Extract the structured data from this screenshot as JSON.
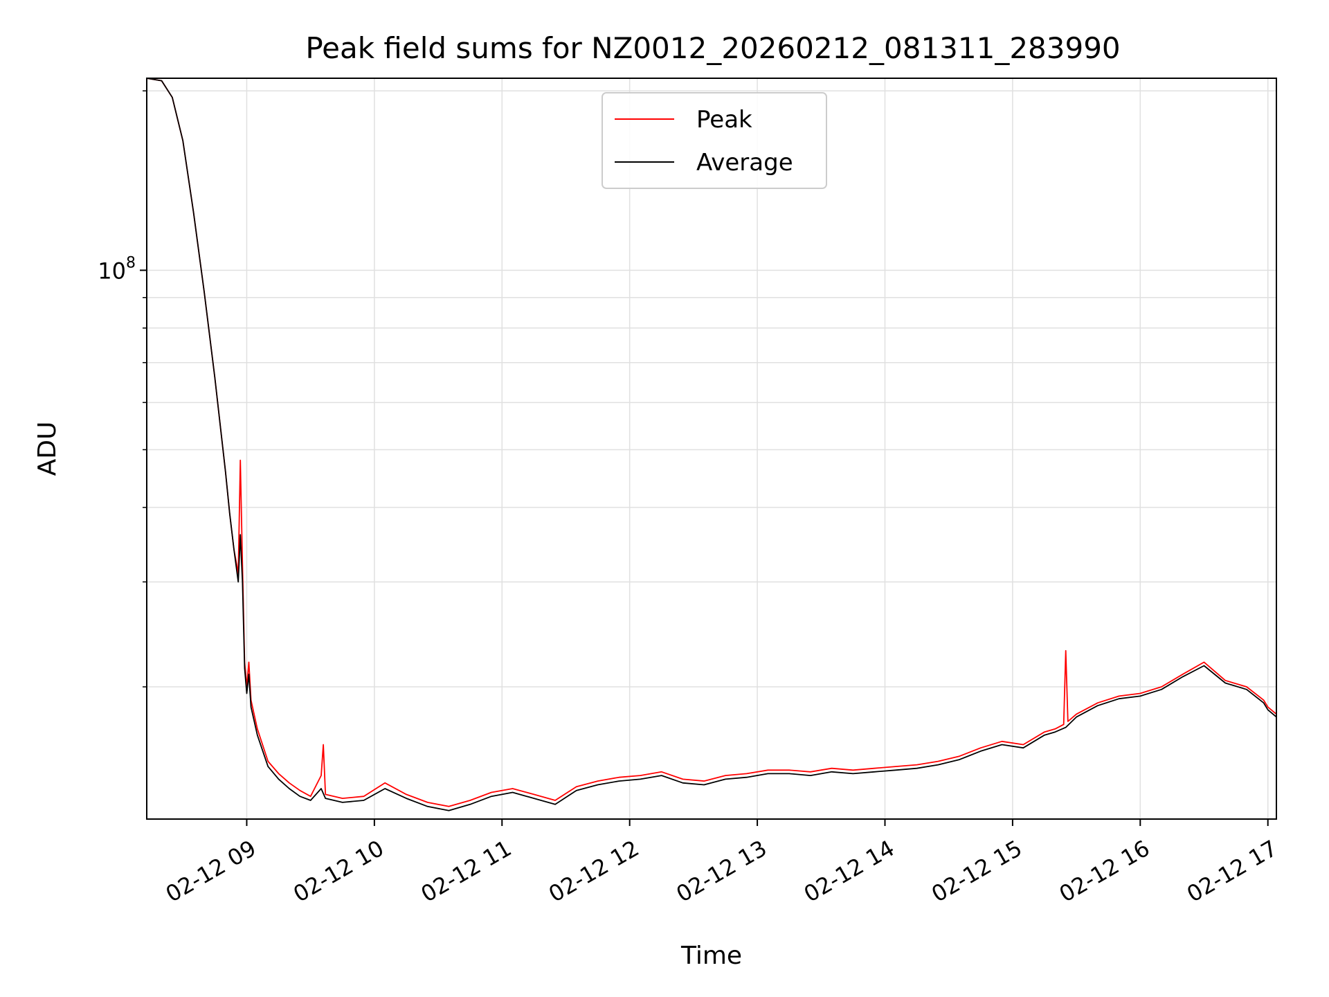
{
  "chart_data": {
    "type": "line",
    "title": "Peak field sums for NZ0012_20260212_081311_283990",
    "xlabel": "Time",
    "ylabel": "ADU",
    "yscale": "log",
    "ylim": [
      12000000,
      210000000
    ],
    "xlim": [
      "2026-02-12T08:13",
      "2026-02-12T17:04"
    ],
    "grid": true,
    "legend_position": "top-center",
    "x_ticks": [
      {
        "t": "2026-02-12T09:00",
        "label": "02-12 09"
      },
      {
        "t": "2026-02-12T10:00",
        "label": "02-12 10"
      },
      {
        "t": "2026-02-12T11:00",
        "label": "02-12 11"
      },
      {
        "t": "2026-02-12T12:00",
        "label": "02-12 12"
      },
      {
        "t": "2026-02-12T13:00",
        "label": "02-12 13"
      },
      {
        "t": "2026-02-12T14:00",
        "label": "02-12 14"
      },
      {
        "t": "2026-02-12T15:00",
        "label": "02-12 15"
      },
      {
        "t": "2026-02-12T16:00",
        "label": "02-12 16"
      },
      {
        "t": "2026-02-12T17:00",
        "label": "02-12 17"
      }
    ],
    "y_major_ticks": [
      {
        "value": 100000000,
        "base": "10",
        "exp": "8"
      }
    ],
    "y_minor_ticks": [
      20000000,
      30000000,
      40000000,
      50000000,
      60000000,
      70000000,
      80000000,
      90000000,
      200000000
    ],
    "series": [
      {
        "name": "Peak",
        "color": "#ff0000",
        "points": [
          [
            "2026-02-12T08:13",
            210000000
          ],
          [
            "2026-02-12T08:20",
            208000000
          ],
          [
            "2026-02-12T08:25",
            195000000
          ],
          [
            "2026-02-12T08:30",
            165000000
          ],
          [
            "2026-02-12T08:35",
            125000000
          ],
          [
            "2026-02-12T08:40",
            92000000
          ],
          [
            "2026-02-12T08:45",
            66000000
          ],
          [
            "2026-02-12T08:50",
            46000000
          ],
          [
            "2026-02-12T08:52",
            39000000
          ],
          [
            "2026-02-12T08:54",
            34000000
          ],
          [
            "2026-02-12T08:56",
            31000000
          ],
          [
            "2026-02-12T08:57",
            48000000
          ],
          [
            "2026-02-12T08:58",
            32000000
          ],
          [
            "2026-02-12T08:59",
            22000000
          ],
          [
            "2026-02-12T09:00",
            20000000
          ],
          [
            "2026-02-12T09:01",
            22000000
          ],
          [
            "2026-02-12T09:02",
            19000000
          ],
          [
            "2026-02-12T09:05",
            17000000
          ],
          [
            "2026-02-12T09:10",
            15000000
          ],
          [
            "2026-02-12T09:15",
            14300000
          ],
          [
            "2026-02-12T09:20",
            13800000
          ],
          [
            "2026-02-12T09:25",
            13400000
          ],
          [
            "2026-02-12T09:30",
            13100000
          ],
          [
            "2026-02-12T09:35",
            14200000
          ],
          [
            "2026-02-12T09:36",
            16000000
          ],
          [
            "2026-02-12T09:37",
            13200000
          ],
          [
            "2026-02-12T09:45",
            13000000
          ],
          [
            "2026-02-12T09:55",
            13100000
          ],
          [
            "2026-02-12T10:05",
            13800000
          ],
          [
            "2026-02-12T10:15",
            13200000
          ],
          [
            "2026-02-12T10:25",
            12800000
          ],
          [
            "2026-02-12T10:35",
            12600000
          ],
          [
            "2026-02-12T10:45",
            12900000
          ],
          [
            "2026-02-12T10:55",
            13300000
          ],
          [
            "2026-02-12T11:05",
            13500000
          ],
          [
            "2026-02-12T11:15",
            13200000
          ],
          [
            "2026-02-12T11:25",
            12900000
          ],
          [
            "2026-02-12T11:35",
            13600000
          ],
          [
            "2026-02-12T11:45",
            13900000
          ],
          [
            "2026-02-12T11:55",
            14100000
          ],
          [
            "2026-02-12T12:05",
            14200000
          ],
          [
            "2026-02-12T12:15",
            14400000
          ],
          [
            "2026-02-12T12:25",
            14000000
          ],
          [
            "2026-02-12T12:35",
            13900000
          ],
          [
            "2026-02-12T12:45",
            14200000
          ],
          [
            "2026-02-12T12:55",
            14300000
          ],
          [
            "2026-02-12T13:05",
            14500000
          ],
          [
            "2026-02-12T13:15",
            14500000
          ],
          [
            "2026-02-12T13:25",
            14400000
          ],
          [
            "2026-02-12T13:35",
            14600000
          ],
          [
            "2026-02-12T13:45",
            14500000
          ],
          [
            "2026-02-12T13:55",
            14600000
          ],
          [
            "2026-02-12T14:05",
            14700000
          ],
          [
            "2026-02-12T14:15",
            14800000
          ],
          [
            "2026-02-12T14:25",
            15000000
          ],
          [
            "2026-02-12T14:35",
            15300000
          ],
          [
            "2026-02-12T14:45",
            15800000
          ],
          [
            "2026-02-12T14:55",
            16200000
          ],
          [
            "2026-02-12T15:05",
            16000000
          ],
          [
            "2026-02-12T15:15",
            16800000
          ],
          [
            "2026-02-12T15:20",
            17000000
          ],
          [
            "2026-02-12T15:24",
            17300000
          ],
          [
            "2026-02-12T15:25",
            23000000
          ],
          [
            "2026-02-12T15:26",
            17500000
          ],
          [
            "2026-02-12T15:30",
            18000000
          ],
          [
            "2026-02-12T15:40",
            18800000
          ],
          [
            "2026-02-12T15:50",
            19300000
          ],
          [
            "2026-02-12T16:00",
            19500000
          ],
          [
            "2026-02-12T16:10",
            20000000
          ],
          [
            "2026-02-12T16:20",
            21000000
          ],
          [
            "2026-02-12T16:30",
            22000000
          ],
          [
            "2026-02-12T16:40",
            20500000
          ],
          [
            "2026-02-12T16:50",
            20000000
          ],
          [
            "2026-02-12T16:58",
            19000000
          ],
          [
            "2026-02-12T17:00",
            18500000
          ],
          [
            "2026-02-12T17:04",
            18000000
          ]
        ]
      },
      {
        "name": "Average",
        "color": "#000000",
        "points": [
          [
            "2026-02-12T08:13",
            210000000
          ],
          [
            "2026-02-12T08:20",
            208000000
          ],
          [
            "2026-02-12T08:25",
            195000000
          ],
          [
            "2026-02-12T08:30",
            165000000
          ],
          [
            "2026-02-12T08:35",
            125000000
          ],
          [
            "2026-02-12T08:40",
            92000000
          ],
          [
            "2026-02-12T08:45",
            66000000
          ],
          [
            "2026-02-12T08:50",
            46000000
          ],
          [
            "2026-02-12T08:52",
            39000000
          ],
          [
            "2026-02-12T08:54",
            34000000
          ],
          [
            "2026-02-12T08:56",
            30000000
          ],
          [
            "2026-02-12T08:57",
            36000000
          ],
          [
            "2026-02-12T08:58",
            30000000
          ],
          [
            "2026-02-12T08:59",
            21500000
          ],
          [
            "2026-02-12T09:00",
            19500000
          ],
          [
            "2026-02-12T09:01",
            21000000
          ],
          [
            "2026-02-12T09:02",
            18500000
          ],
          [
            "2026-02-12T09:05",
            16600000
          ],
          [
            "2026-02-12T09:10",
            14700000
          ],
          [
            "2026-02-12T09:15",
            14000000
          ],
          [
            "2026-02-12T09:20",
            13500000
          ],
          [
            "2026-02-12T09:25",
            13100000
          ],
          [
            "2026-02-12T09:30",
            12900000
          ],
          [
            "2026-02-12T09:35",
            13500000
          ],
          [
            "2026-02-12T09:37",
            13000000
          ],
          [
            "2026-02-12T09:45",
            12800000
          ],
          [
            "2026-02-12T09:55",
            12900000
          ],
          [
            "2026-02-12T10:05",
            13500000
          ],
          [
            "2026-02-12T10:15",
            13000000
          ],
          [
            "2026-02-12T10:25",
            12600000
          ],
          [
            "2026-02-12T10:35",
            12400000
          ],
          [
            "2026-02-12T10:45",
            12700000
          ],
          [
            "2026-02-12T10:55",
            13100000
          ],
          [
            "2026-02-12T11:05",
            13300000
          ],
          [
            "2026-02-12T11:15",
            13000000
          ],
          [
            "2026-02-12T11:25",
            12700000
          ],
          [
            "2026-02-12T11:35",
            13400000
          ],
          [
            "2026-02-12T11:45",
            13700000
          ],
          [
            "2026-02-12T11:55",
            13900000
          ],
          [
            "2026-02-12T12:05",
            14000000
          ],
          [
            "2026-02-12T12:15",
            14200000
          ],
          [
            "2026-02-12T12:25",
            13800000
          ],
          [
            "2026-02-12T12:35",
            13700000
          ],
          [
            "2026-02-12T12:45",
            14000000
          ],
          [
            "2026-02-12T12:55",
            14100000
          ],
          [
            "2026-02-12T13:05",
            14300000
          ],
          [
            "2026-02-12T13:15",
            14300000
          ],
          [
            "2026-02-12T13:25",
            14200000
          ],
          [
            "2026-02-12T13:35",
            14400000
          ],
          [
            "2026-02-12T13:45",
            14300000
          ],
          [
            "2026-02-12T13:55",
            14400000
          ],
          [
            "2026-02-12T14:05",
            14500000
          ],
          [
            "2026-02-12T14:15",
            14600000
          ],
          [
            "2026-02-12T14:25",
            14800000
          ],
          [
            "2026-02-12T14:35",
            15100000
          ],
          [
            "2026-02-12T14:45",
            15600000
          ],
          [
            "2026-02-12T14:55",
            16000000
          ],
          [
            "2026-02-12T15:05",
            15800000
          ],
          [
            "2026-02-12T15:15",
            16600000
          ],
          [
            "2026-02-12T15:20",
            16800000
          ],
          [
            "2026-02-12T15:25",
            17100000
          ],
          [
            "2026-02-12T15:30",
            17800000
          ],
          [
            "2026-02-12T15:40",
            18600000
          ],
          [
            "2026-02-12T15:50",
            19100000
          ],
          [
            "2026-02-12T16:00",
            19300000
          ],
          [
            "2026-02-12T16:10",
            19800000
          ],
          [
            "2026-02-12T16:20",
            20800000
          ],
          [
            "2026-02-12T16:30",
            21700000
          ],
          [
            "2026-02-12T16:40",
            20300000
          ],
          [
            "2026-02-12T16:50",
            19800000
          ],
          [
            "2026-02-12T16:58",
            18800000
          ],
          [
            "2026-02-12T17:00",
            18300000
          ],
          [
            "2026-02-12T17:04",
            17800000
          ]
        ]
      }
    ]
  }
}
